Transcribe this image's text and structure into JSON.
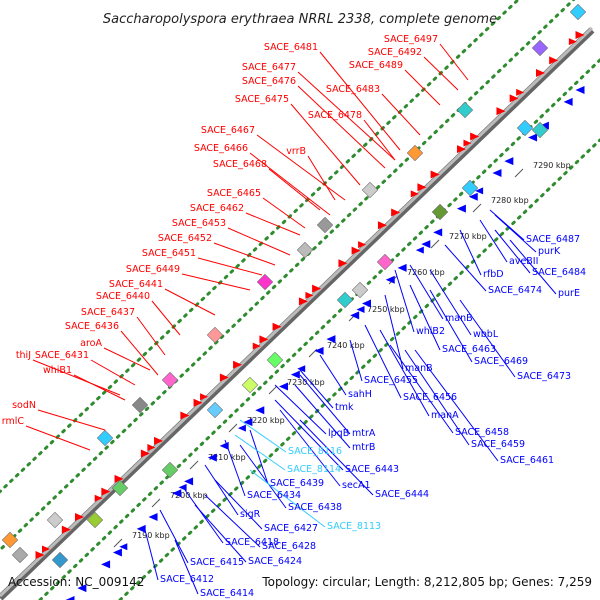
{
  "title": "Saccharopolyspora erythraea NRRL 2338, complete genome",
  "footer": {
    "accession": "Accession: NC_009142",
    "summary": "Topology: circular; Length: 8,212,805 bp; Genes: 7,259"
  },
  "colors": {
    "forward": "#ff0000",
    "reverse": "#0000ff",
    "rna": "#33ccff",
    "backbone": "#888888",
    "dots": "#2e8b2e"
  },
  "kbp_labels": [
    "7190 kbp",
    "7200 kbp",
    "7210 kbp",
    "7220 kbp",
    "7230 kbp",
    "7240 kbp",
    "7250 kbp",
    "7260 kbp",
    "7270 kbp",
    "7280 kbp",
    "7290 kbp"
  ],
  "forward_labels": [
    "SACE_6497",
    "SACE_6492",
    "SACE_6481",
    "SACE_6489",
    "SACE_6477",
    "SACE_6476",
    "SACE_6483",
    "SACE_6475",
    "SACE_6478",
    "SACE_6467",
    "SACE_6466",
    "vrrB",
    "SACE_6468",
    "SACE_6465",
    "SACE_6462",
    "SACE_6453",
    "SACE_6452",
    "SACE_6451",
    "SACE_6449",
    "SACE_6441",
    "SACE_6440",
    "SACE_6437",
    "SACE_6436",
    "aroA",
    "thiJ",
    "SACE_6431",
    "whiB1",
    "sodN",
    "rmlC"
  ],
  "reverse_labels": [
    "SACE_6487",
    "purK",
    "aveBII",
    "SACE_6484",
    "rfbD",
    "purE",
    "SACE_6474",
    "manB",
    "whiB2",
    "wbbL",
    "SACE_6463",
    "SACE_6469",
    "manB",
    "SACE_6473",
    "sahH",
    "SACE_6455",
    "SACE_6456",
    "tmk",
    "manA",
    "lpqB",
    "mtrA",
    "SACE_6458",
    "mtrB",
    "SACE_6459",
    "SACE_6461",
    "SACE_6443",
    "secA1",
    "SACE_6439",
    "SACE_6444",
    "SACE_6434",
    "SACE_6438",
    "sigR",
    "SACE_6427",
    "SACE_6418",
    "SACE_6428",
    "SACE_6415",
    "SACE_6424",
    "SACE_6412",
    "SACE_6414"
  ],
  "rna_labels": [
    "SACE_8116",
    "SACE_8114",
    "SACE_8113"
  ]
}
